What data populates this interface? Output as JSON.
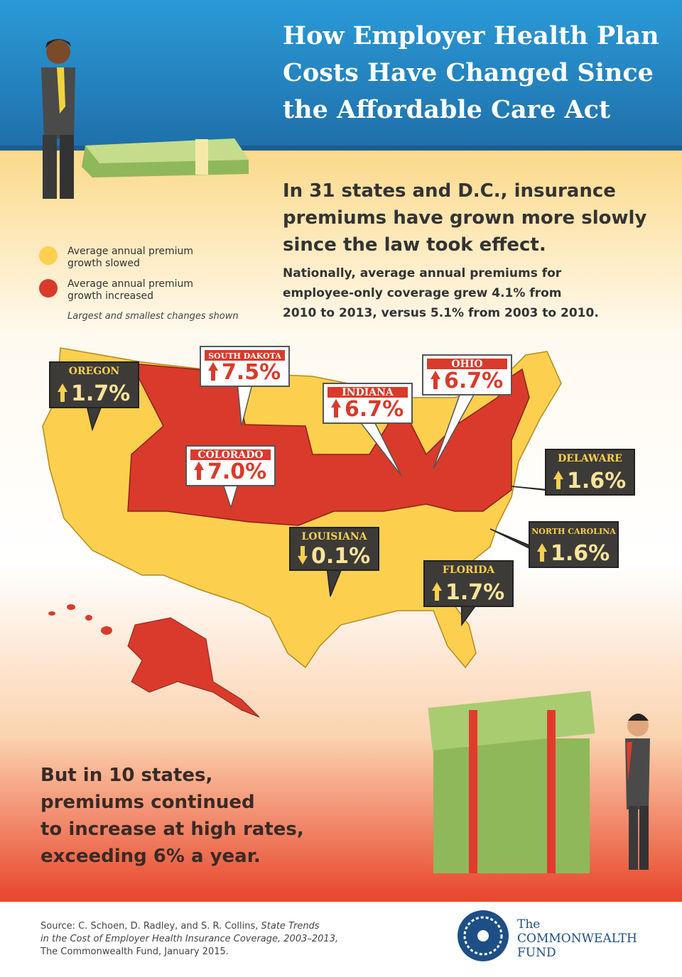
{
  "header": {
    "title_lines": [
      "How Employer Health Plan",
      "Costs Have Changed Since",
      "the Affordable Care Act"
    ]
  },
  "intro": {
    "headline_lines": [
      "In 31 states and D.C., insurance",
      "premiums have grown more slowly",
      "since the law took effect."
    ],
    "detail_lines": [
      "Nationally, average annual premiums for",
      "employee-only coverage grew 4.1% from",
      "2010 to 2013, versus 5.1% from 2003 to 2010."
    ]
  },
  "legend": {
    "items": [
      {
        "lines": [
          "Average annual premium",
          "growth slowed"
        ],
        "color": "#fcd04e"
      },
      {
        "lines": [
          "Average annual premium",
          "growth increased"
        ],
        "color": "#d93a2b"
      }
    ],
    "note": "Largest and smallest changes shown"
  },
  "callouts": [
    {
      "state": "OREGON",
      "value": "1.7%",
      "direction": "up",
      "color": "#fcd04e"
    },
    {
      "state": "SOUTH DAKOTA",
      "value": "7.5%",
      "direction": "up",
      "color": "#d93a2b"
    },
    {
      "state": "INDIANA",
      "value": "6.7%",
      "direction": "up",
      "color": "#d93a2b"
    },
    {
      "state": "OHIO",
      "value": "6.7%",
      "direction": "up",
      "color": "#d93a2b"
    },
    {
      "state": "COLORADO",
      "value": "7.0%",
      "direction": "up",
      "color": "#d93a2b"
    },
    {
      "state": "DELAWARE",
      "value": "1.6%",
      "direction": "up",
      "color": "#fcd04e"
    },
    {
      "state": "LOUISIANA",
      "value": "0.1%",
      "direction": "down",
      "color": "#fcd04e"
    },
    {
      "state": "NORTH CAROLINA",
      "value": "1.6%",
      "direction": "up",
      "color": "#fcd04e"
    },
    {
      "state": "FLORIDA",
      "value": "1.7%",
      "direction": "up",
      "color": "#fcd04e"
    }
  ],
  "bottom": {
    "lines": [
      "But in 10 states,",
      "premiums continued",
      "to increase at high rates,",
      "exceeding 6% a year."
    ]
  },
  "footer": {
    "source_lines": [
      [
        "Source: C. Schoen, D. Radley, and S. R. Collins, ",
        "State Trends"
      ],
      [
        "in the Cost of Employer Health Insurance Coverage, 2003–2013,"
      ],
      [
        "The Commonwealth Fund, January 2015."
      ]
    ],
    "logo": {
      "line1": "The",
      "line2": "COMMONWEALTH",
      "line3": "FUND"
    }
  }
}
